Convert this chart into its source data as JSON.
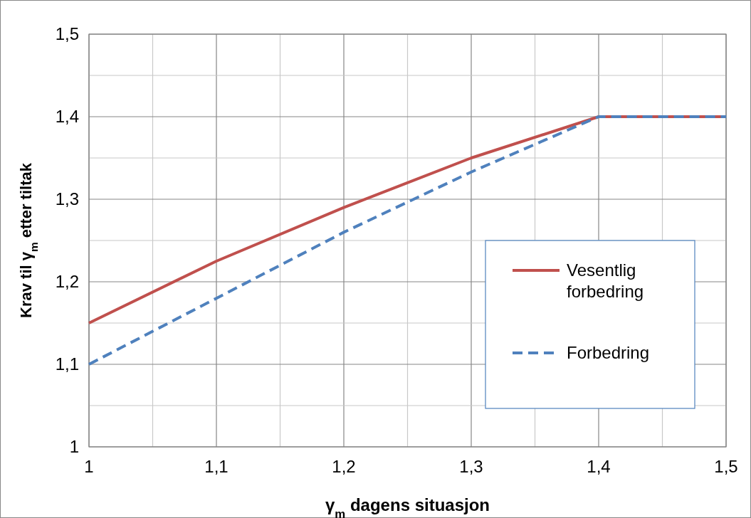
{
  "chart_data": {
    "type": "line",
    "xlabel": "γ$_{m}$ dagens situasjon",
    "ylabel": "Krav til γ$_{m}$ etter tiltak",
    "x": [
      1,
      1.1,
      1.2,
      1.3,
      1.4,
      1.5
    ],
    "series": [
      {
        "name": "Vesentlig forbedring",
        "color": "#c0504d",
        "values": [
          1.15,
          1.225,
          1.29,
          1.35,
          1.4,
          1.4
        ],
        "line_style": "solid"
      },
      {
        "name": "Forbedring",
        "color": "#4f81bd",
        "values": [
          1.1,
          1.18,
          1.26,
          1.333,
          1.4,
          1.4
        ],
        "line_style": "dashed"
      }
    ],
    "xlim": [
      1,
      1.5
    ],
    "ylim": [
      1,
      1.5
    ],
    "xticks": [
      {
        "value": 1,
        "label": "1"
      },
      {
        "value": 1.05,
        "label": null
      },
      {
        "value": 1.1,
        "label": "1,1"
      },
      {
        "value": 1.15,
        "label": null
      },
      {
        "value": 1.2,
        "label": "1,2"
      },
      {
        "value": 1.25,
        "label": null
      },
      {
        "value": 1.3,
        "label": "1,3"
      },
      {
        "value": 1.35,
        "label": null
      },
      {
        "value": 1.4,
        "label": "1,4"
      },
      {
        "value": 1.45,
        "label": null
      },
      {
        "value": 1.5,
        "label": "1,5"
      }
    ],
    "yticks": [
      {
        "value": 1,
        "label": "1"
      },
      {
        "value": 1.05,
        "label": null
      },
      {
        "value": 1.1,
        "label": "1,1"
      },
      {
        "value": 1.15,
        "label": null
      },
      {
        "value": 1.2,
        "label": "1,2"
      },
      {
        "value": 1.25,
        "label": null
      },
      {
        "value": 1.3,
        "label": "1,3"
      },
      {
        "value": 1.35,
        "label": null
      },
      {
        "value": 1.4,
        "label": "1,4"
      },
      {
        "value": 1.45,
        "label": null
      },
      {
        "value": 1.5,
        "label": "1,5"
      }
    ],
    "grid": true,
    "legend": "right",
    "marker": "none"
  }
}
